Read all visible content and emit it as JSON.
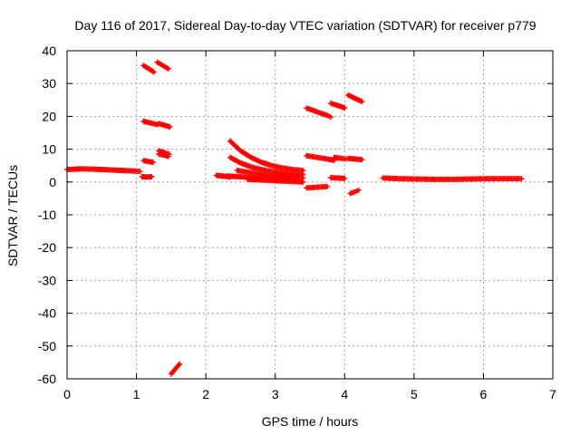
{
  "chart_data": {
    "type": "scatter",
    "title": "Day 116 of 2017, Sidereal Day-to-day VTEC variation (SDTVAR) for receiver p779",
    "xlabel": "GPS time / hours",
    "ylabel": "SDTVAR / TECUs",
    "xlim": [
      0,
      7
    ],
    "ylim": [
      -60,
      40
    ],
    "xticks": [
      "0",
      "1",
      "2",
      "3",
      "4",
      "5",
      "6",
      "7"
    ],
    "yticks": [
      "-60",
      "-50",
      "-40",
      "-30",
      "-20",
      "-10",
      "0",
      "10",
      "20",
      "30",
      "40"
    ],
    "grid": true,
    "legend": "none",
    "marker": "+",
    "color": "#ff0000",
    "series": [
      {
        "x": [
          0.0,
          0.2,
          0.4,
          0.6,
          0.8,
          1.0,
          1.05
        ],
        "y": [
          3.8,
          4.0,
          3.9,
          3.7,
          3.5,
          3.3,
          3.2
        ]
      },
      {
        "x": [
          1.08,
          1.14,
          1.22
        ],
        "y": [
          1.6,
          1.5,
          1.6
        ]
      },
      {
        "x": [
          1.1,
          1.18,
          1.24
        ],
        "y": [
          6.5,
          6.2,
          6.0
        ]
      },
      {
        "x": [
          1.1,
          1.18,
          1.25
        ],
        "y": [
          35.5,
          34.5,
          33.5
        ]
      },
      {
        "x": [
          1.3,
          1.38,
          1.46
        ],
        "y": [
          36.5,
          35.5,
          34.5
        ]
      },
      {
        "x": [
          1.1,
          1.2,
          1.3
        ],
        "y": [
          18.5,
          18.0,
          17.5
        ]
      },
      {
        "x": [
          1.32,
          1.4,
          1.48
        ],
        "y": [
          17.8,
          17.3,
          16.8
        ]
      },
      {
        "x": [
          1.32,
          1.4,
          1.47
        ],
        "y": [
          9.5,
          9.0,
          8.5
        ]
      },
      {
        "x": [
          1.32,
          1.4,
          1.46
        ],
        "y": [
          8.5,
          8.2,
          7.8
        ]
      },
      {
        "x": [
          1.5,
          1.56,
          1.62
        ],
        "y": [
          -58.5,
          -57,
          -55.5
        ]
      },
      {
        "x": [
          2.15,
          2.25,
          2.35
        ],
        "y": [
          2.0,
          1.8,
          1.5
        ]
      },
      {
        "x": [
          2.35,
          2.5,
          2.65,
          2.8,
          2.95,
          3.1,
          3.25,
          3.4
        ],
        "y": [
          12.5,
          9.5,
          7.5,
          6.0,
          5.0,
          4.3,
          3.8,
          3.5
        ]
      },
      {
        "x": [
          2.35,
          2.5,
          2.65,
          2.8,
          2.95,
          3.1,
          3.25,
          3.4
        ],
        "y": [
          7.5,
          5.8,
          4.6,
          3.8,
          3.2,
          2.8,
          2.5,
          2.3
        ]
      },
      {
        "x": [
          2.45,
          2.6,
          2.75,
          2.9,
          3.05,
          3.2,
          3.35,
          3.4
        ],
        "y": [
          3.5,
          3.0,
          2.5,
          2.1,
          1.8,
          1.5,
          1.3,
          1.2
        ]
      },
      {
        "x": [
          2.3,
          2.5,
          2.7,
          2.9,
          3.1,
          3.25
        ],
        "y": [
          1.8,
          1.6,
          1.3,
          1.0,
          0.7,
          0.5
        ]
      },
      {
        "x": [
          2.6,
          2.8,
          3.0,
          3.2,
          3.4
        ],
        "y": [
          0.8,
          0.6,
          0.4,
          0.2,
          0.0
        ]
      },
      {
        "x": [
          3.45,
          3.55,
          3.65,
          3.75,
          3.8
        ],
        "y": [
          22.5,
          21.8,
          21.0,
          20.3,
          19.8
        ]
      },
      {
        "x": [
          3.45,
          3.6,
          3.75,
          3.85
        ],
        "y": [
          8.0,
          7.5,
          7.0,
          6.6
        ]
      },
      {
        "x": [
          3.45,
          3.6,
          3.75
        ],
        "y": [
          -1.8,
          -1.6,
          -1.4
        ]
      },
      {
        "x": [
          3.8,
          3.9,
          4.0
        ],
        "y": [
          24.0,
          23.3,
          22.6
        ]
      },
      {
        "x": [
          3.8,
          3.9,
          4.0
        ],
        "y": [
          1.3,
          1.2,
          1.1
        ]
      },
      {
        "x": [
          3.85,
          3.95,
          4.02
        ],
        "y": [
          7.5,
          7.2,
          7.0
        ]
      },
      {
        "x": [
          4.05,
          4.15,
          4.25
        ],
        "y": [
          26.5,
          25.5,
          24.5
        ]
      },
      {
        "x": [
          4.05,
          4.15,
          4.25
        ],
        "y": [
          7.2,
          7.0,
          6.8
        ]
      },
      {
        "x": [
          4.08,
          4.15,
          4.2
        ],
        "y": [
          -3.5,
          -3.0,
          -2.5
        ]
      },
      {
        "x": [
          4.55,
          4.8,
          5.05,
          5.3,
          5.55,
          5.8,
          6.05,
          6.3,
          6.55
        ],
        "y": [
          1.2,
          1.0,
          0.9,
          0.8,
          0.8,
          0.9,
          1.0,
          1.0,
          1.0
        ]
      }
    ]
  }
}
